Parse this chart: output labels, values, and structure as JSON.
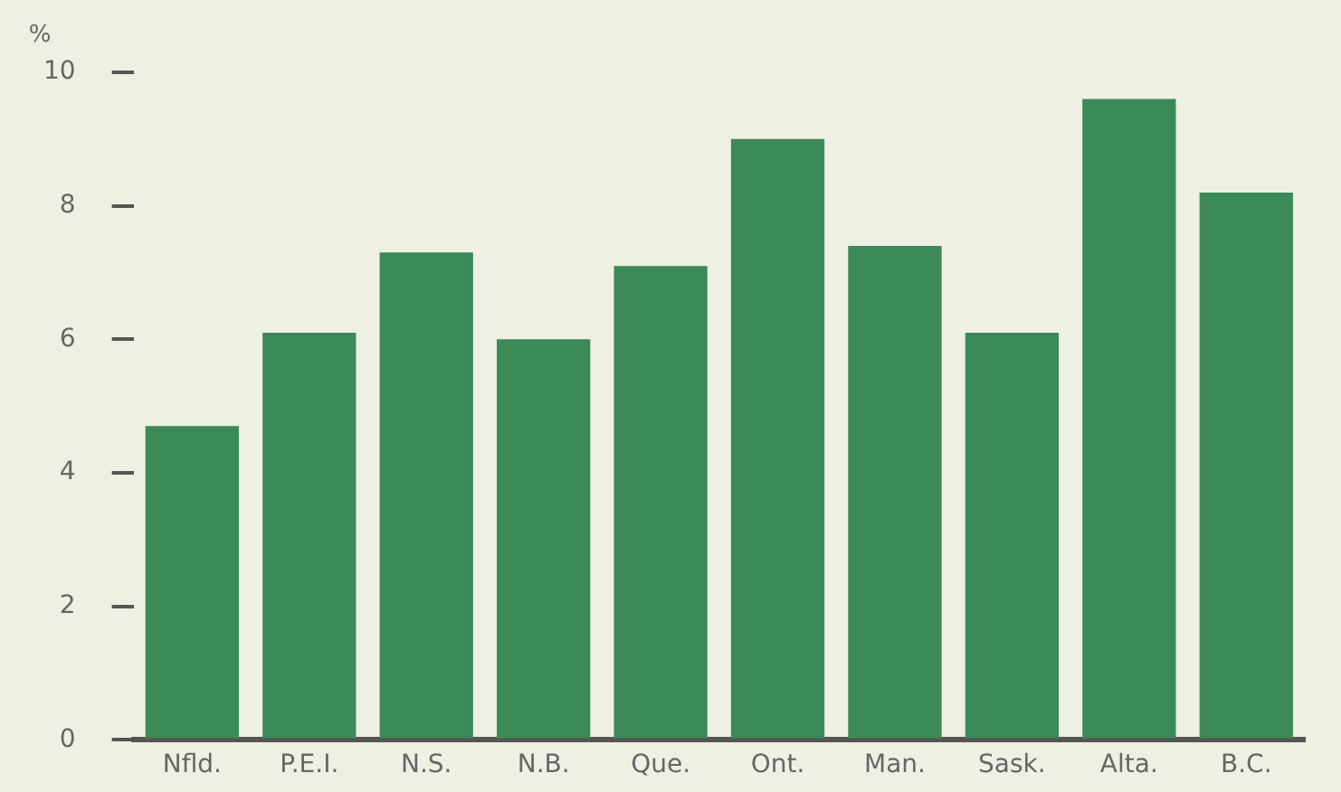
{
  "chart_data": {
    "type": "bar",
    "ylabel": "%",
    "categories": [
      "Nfld.",
      "P.E.I.",
      "N.S.",
      "N.B.",
      "Que.",
      "Ont.",
      "Man.",
      "Sask.",
      "Alta.",
      "B.C."
    ],
    "values": [
      4.7,
      6.1,
      7.3,
      6.0,
      7.1,
      9.0,
      7.4,
      6.1,
      9.6,
      8.2
    ],
    "color": "#3b8a58",
    "ylim": [
      0,
      10
    ],
    "yticks": [
      0,
      2,
      4,
      6,
      8,
      10
    ],
    "grid": false,
    "legend": false
  }
}
